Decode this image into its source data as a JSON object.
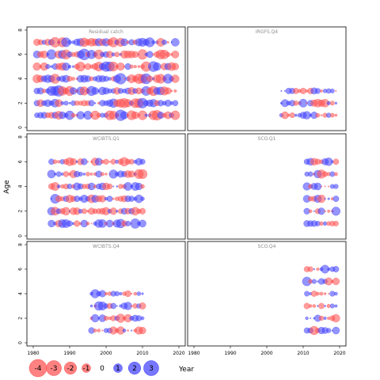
{
  "chart_data": {
    "type": "scatter",
    "encoding": "bubble",
    "ylabel": "Age",
    "xlabel": "Year",
    "xlim": [
      1980,
      2020
    ],
    "ylim": [
      0,
      8
    ],
    "x_ticks": [
      1980,
      1990,
      2000,
      2010,
      2020
    ],
    "y_ticks": [
      0,
      2,
      4,
      6,
      8
    ],
    "colors": {
      "positive": "#3c3cff",
      "negative": "#ff4b4b",
      "edge": "#b03030",
      "frame": "#000000",
      "title": "#8c8c8c"
    },
    "legend": {
      "values": [
        -4,
        -3,
        -2,
        -1,
        0,
        1,
        2,
        3
      ],
      "labels": [
        "-4",
        "-3",
        "-2",
        "-1",
        "0",
        "1",
        "2",
        "3"
      ],
      "placement": "bottom"
    },
    "panels": [
      {
        "title": "Residual catch",
        "years": [
          1981,
          2019
        ],
        "ages": [
          1,
          2,
          3,
          4,
          5,
          6,
          7
        ],
        "max_abs": 3.5
      },
      {
        "title": "IRGFS.Q4",
        "years": [
          2004,
          2019
        ],
        "ages": [
          1,
          2,
          3
        ],
        "max_abs": 2.3
      },
      {
        "title": "WCIBTS.Q1",
        "years": [
          1985,
          2010
        ],
        "ages": [
          1,
          2,
          3,
          4,
          5,
          6
        ],
        "max_abs": 2.8
      },
      {
        "title": "SCO.Q1",
        "years": [
          2011,
          2019
        ],
        "ages": [
          1,
          2,
          3,
          4,
          5,
          6
        ],
        "max_abs": 2.4
      },
      {
        "title": "WCIBTS.Q4",
        "years": [
          1996,
          2010
        ],
        "ages": [
          1,
          2,
          3,
          4
        ],
        "max_abs": 2.4
      },
      {
        "title": "SCO.Q4",
        "years": [
          2011,
          2019
        ],
        "ages": [
          1,
          2,
          3,
          4,
          5,
          6
        ],
        "max_abs": 2.4
      }
    ]
  }
}
